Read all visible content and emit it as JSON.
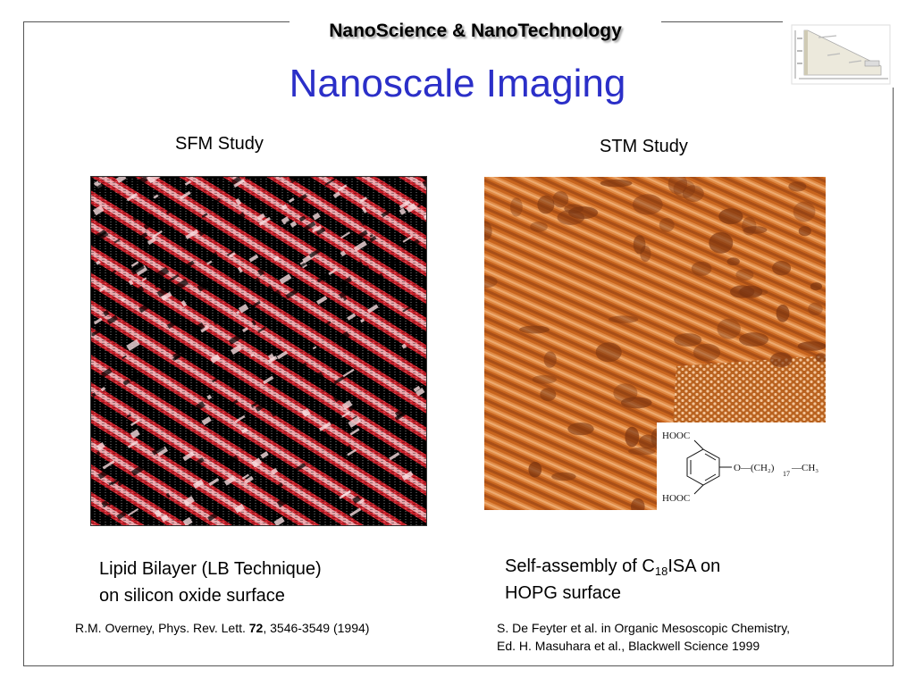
{
  "slide": {
    "header": "NanoScience & NanoTechnology",
    "title": "Nanoscale Imaging"
  },
  "logo": {
    "icon": "nanoscience-scale-diagram-icon"
  },
  "left_panel": {
    "label": "SFM Study",
    "caption_line1": "Lipid Bilayer (LB Technique)",
    "caption_line2": "on silicon oxide surface",
    "ref_prefix": "R.M. Overney, Phys. Rev. Lett. ",
    "ref_volume": "72",
    "ref_suffix": ", 3546-3549 (1994)"
  },
  "right_panel": {
    "label": "STM Study",
    "caption_pre": "Self-assembly of C",
    "caption_sub": "18",
    "caption_post": "ISA on",
    "caption_line2": "HOPG surface",
    "ref_line1": "S. De Feyter et al. in Organic Mesoscopic Chemistry,",
    "ref_line2": "Ed. H. Masuhara et al., Blackwell Science 1999",
    "chem": {
      "top_group": "HOOC",
      "bottom_group": "HOOC",
      "chain": "O—(CH₂)",
      "chain_sub": "17",
      "end_group": "—CH₃"
    }
  },
  "colors": {
    "title": "#2b2fc8",
    "sfm_dark": "#000000",
    "sfm_red": "#c8202a",
    "sfm_light": "#f3d0d4",
    "stm_base": "#c8651e",
    "stm_dark": "#7a3410",
    "stm_light": "#f0b27a"
  }
}
